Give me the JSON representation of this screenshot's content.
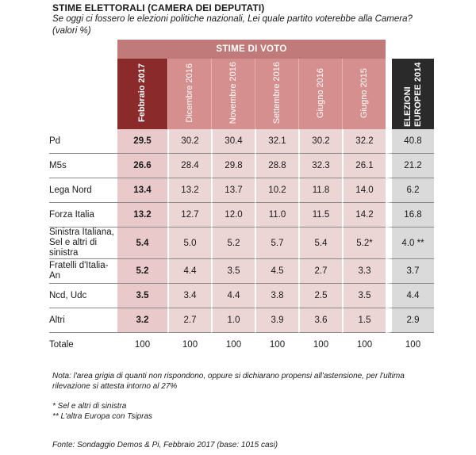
{
  "title": "STIME ELETTORALI (CAMERA DEI DEPUTATI)",
  "subtitle": "Se oggi ci fossero le elezioni politiche nazionali, Lei quale partito voterebbe alla Camera?  (valori %)",
  "group_header": "STIME DI VOTO",
  "columns": [
    "Febbraio 2017",
    "Dicembre 2016",
    "Novembre 2016",
    "Settembre 2016",
    "Giugno 2016",
    "Giugno 2015",
    "ELEZIONI EUROPEE 2014"
  ],
  "rows": [
    {
      "label": "Pd",
      "values": [
        "29.5",
        "30.2",
        "30.4",
        "32.1",
        "30.2",
        "32.2",
        "40.8"
      ]
    },
    {
      "label": "M5s",
      "values": [
        "26.6",
        "28.4",
        "29.8",
        "28.8",
        "32.3",
        "26.1",
        "21.2"
      ]
    },
    {
      "label": "Lega Nord",
      "values": [
        "13.4",
        "13.2",
        "13.7",
        "10.2",
        "11.8",
        "14.0",
        "6.2"
      ]
    },
    {
      "label": "Forza Italia",
      "values": [
        "13.2",
        "12.7",
        "12.0",
        "11.0",
        "11.5",
        "14.2",
        "16.8"
      ]
    },
    {
      "label": "Sinistra Italiana, Sel e altri di sinistra",
      "values": [
        "5.4",
        "5.0",
        "5.2",
        "5.7",
        "5.4",
        "5.2*",
        "4.0 **"
      ]
    },
    {
      "label": "Fratelli d'Italia-An",
      "values": [
        "5.2",
        "4.4",
        "3.5",
        "4.5",
        "2.7",
        "3.3",
        "3.7"
      ]
    },
    {
      "label": "Ncd, Udc",
      "values": [
        "3.5",
        "3.4",
        "4.4",
        "3.8",
        "2.5",
        "3.5",
        "4.4"
      ]
    },
    {
      "label": "Altri",
      "values": [
        "3.2",
        "2.7",
        "1.0",
        "3.9",
        "3.6",
        "1.5",
        "2.9"
      ]
    }
  ],
  "total": {
    "label": "Totale",
    "values": [
      "100",
      "100",
      "100",
      "100",
      "100",
      "100",
      "100"
    ]
  },
  "note": "Nota: l'area grigia di quanti non rispondono, oppure si dichiarano propensi all'astensione, per l'ultima rilevazione si attesta intorno al 27%",
  "footnote_1": "* Sel e altri di sinistra",
  "footnote_2": "** L'altra Europa con Tsipras",
  "source": "Fonte: Sondaggio Demos & Pi, Febbraio 2017 (base: 1015 casi)"
}
